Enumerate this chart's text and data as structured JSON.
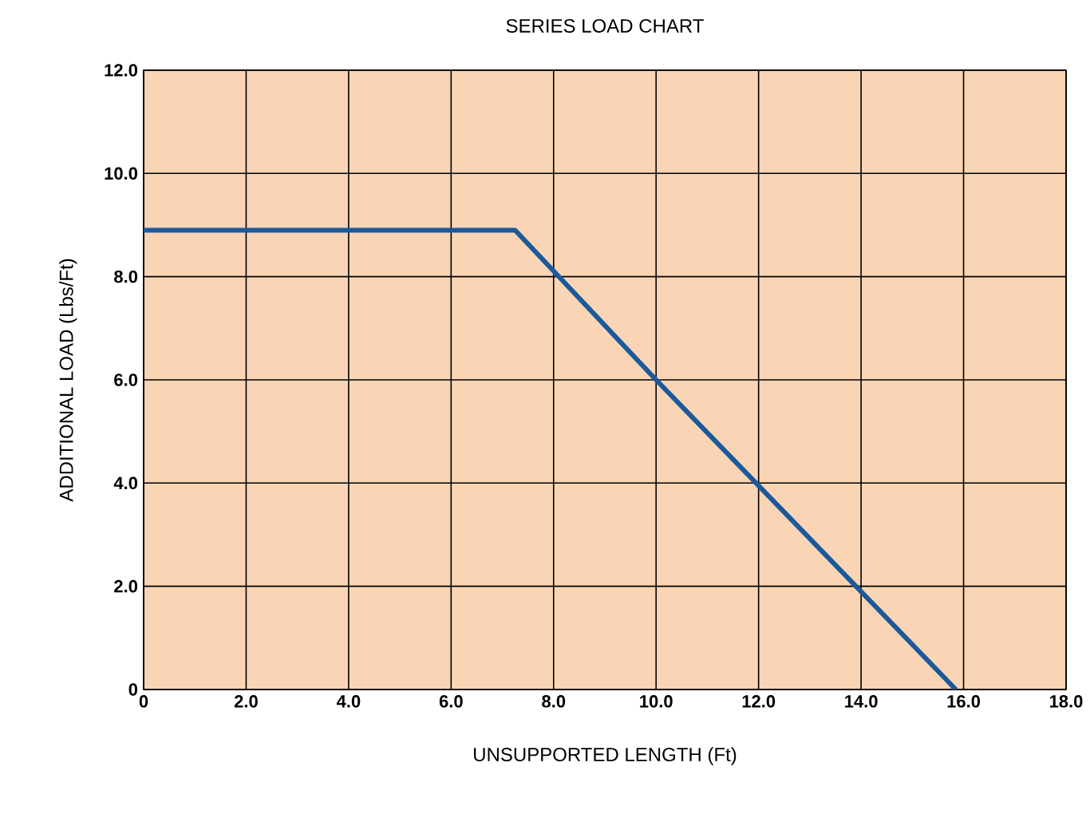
{
  "chart_data": {
    "type": "line",
    "title": "SERIES LOAD CHART",
    "xlabel": "UNSUPPORTED LENGTH (Ft)",
    "ylabel": "ADDITIONAL LOAD (Lbs/Ft)",
    "x": [
      0,
      7.25,
      10,
      15.85
    ],
    "series": [
      {
        "color": "#1a5a9c",
        "values": [
          8.9,
          8.9,
          6.0,
          0
        ]
      }
    ],
    "xlim": [
      0,
      18
    ],
    "ylim": [
      0,
      12
    ],
    "xticks": [
      0,
      {
        "value": 2,
        "label": "2.0"
      },
      {
        "value": 4,
        "label": "4.0"
      },
      {
        "value": 6,
        "label": "6.0"
      },
      {
        "value": 8,
        "label": "8.0"
      },
      {
        "value": 10,
        "label": "10.0"
      },
      {
        "value": 12,
        "label": "12.0"
      },
      {
        "value": 14,
        "label": "14.0"
      },
      {
        "value": 16,
        "label": "16.0"
      },
      {
        "value": 18,
        "label": "18.0"
      }
    ],
    "yticks": [
      0,
      {
        "value": 2,
        "label": "2.0"
      },
      {
        "value": 4,
        "label": "4.0"
      },
      {
        "value": 6,
        "label": "6.0"
      },
      {
        "value": 8,
        "label": "8.0"
      },
      {
        "value": 10,
        "label": "10.0"
      },
      {
        "value": 12,
        "label": "12.0"
      }
    ],
    "grid": true,
    "marker": "none",
    "line_style": "solid"
  }
}
